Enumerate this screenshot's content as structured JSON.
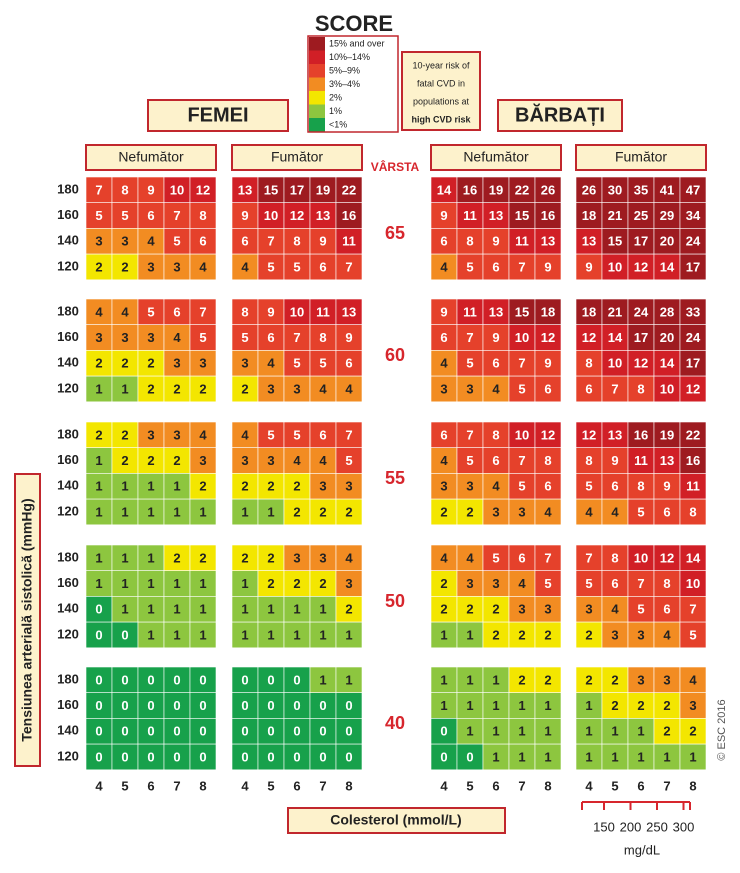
{
  "title": "SCORE",
  "legend": {
    "items": [
      {
        "label": "15% and over",
        "color": "#9e1b20"
      },
      {
        "label": "10%–14%",
        "color": "#d11f26"
      },
      {
        "label": "5%–9%",
        "color": "#e5412b"
      },
      {
        "label": "3%–4%",
        "color": "#f28c22"
      },
      {
        "label": "2%",
        "color": "#f3e600"
      },
      {
        "label": "1%",
        "color": "#8dc63f"
      },
      {
        "label": "<1%",
        "color": "#17a14b"
      }
    ]
  },
  "note": [
    "10-year risk of",
    "fatal CVD in",
    "populations at",
    "high CVD risk"
  ],
  "sexes": [
    "FEMEI",
    "BĂRBAȚI"
  ],
  "panels": [
    "Nefumător",
    "Fumător",
    "Nefumător",
    "Fumător"
  ],
  "age_label": "VÂRSTA",
  "ages": [
    65,
    60,
    55,
    50,
    40
  ],
  "bp": [
    180,
    160,
    140,
    120
  ],
  "cholesterol": [
    4,
    5,
    6,
    7,
    8
  ],
  "grids": [
    [
      [
        [
          7,
          8,
          9,
          10,
          12
        ],
        [
          5,
          5,
          6,
          7,
          8
        ],
        [
          3,
          3,
          4,
          5,
          6
        ],
        [
          2,
          2,
          3,
          3,
          4
        ]
      ],
      [
        [
          13,
          15,
          17,
          19,
          22
        ],
        [
          9,
          10,
          12,
          13,
          16
        ],
        [
          6,
          7,
          8,
          9,
          11
        ],
        [
          4,
          5,
          5,
          6,
          7
        ]
      ],
      [
        [
          14,
          16,
          19,
          22,
          26
        ],
        [
          9,
          11,
          13,
          15,
          16
        ],
        [
          6,
          8,
          9,
          11,
          13
        ],
        [
          4,
          5,
          6,
          7,
          9
        ]
      ],
      [
        [
          26,
          30,
          35,
          41,
          47
        ],
        [
          18,
          21,
          25,
          29,
          34
        ],
        [
          13,
          15,
          17,
          20,
          24
        ],
        [
          9,
          10,
          12,
          14,
          17
        ]
      ]
    ],
    [
      [
        [
          4,
          4,
          5,
          6,
          7
        ],
        [
          3,
          3,
          3,
          4,
          5
        ],
        [
          2,
          2,
          2,
          3,
          3
        ],
        [
          1,
          1,
          2,
          2,
          2
        ]
      ],
      [
        [
          8,
          9,
          10,
          11,
          13
        ],
        [
          5,
          6,
          7,
          8,
          9
        ],
        [
          3,
          4,
          5,
          5,
          6
        ],
        [
          2,
          3,
          3,
          4,
          4
        ]
      ],
      [
        [
          9,
          11,
          13,
          15,
          18
        ],
        [
          6,
          7,
          9,
          10,
          12
        ],
        [
          4,
          5,
          6,
          7,
          9
        ],
        [
          3,
          3,
          4,
          5,
          6
        ]
      ],
      [
        [
          18,
          21,
          24,
          28,
          33
        ],
        [
          12,
          14,
          17,
          20,
          24
        ],
        [
          8,
          10,
          12,
          14,
          17
        ],
        [
          6,
          7,
          8,
          10,
          12
        ]
      ]
    ],
    [
      [
        [
          2,
          2,
          3,
          3,
          4
        ],
        [
          1,
          2,
          2,
          2,
          3
        ],
        [
          1,
          1,
          1,
          1,
          2
        ],
        [
          1,
          1,
          1,
          1,
          1
        ]
      ],
      [
        [
          4,
          5,
          5,
          6,
          7
        ],
        [
          3,
          3,
          4,
          4,
          5
        ],
        [
          2,
          2,
          2,
          3,
          3
        ],
        [
          1,
          1,
          2,
          2,
          2
        ]
      ],
      [
        [
          6,
          7,
          8,
          10,
          12
        ],
        [
          4,
          5,
          6,
          7,
          8
        ],
        [
          3,
          3,
          4,
          5,
          6
        ],
        [
          2,
          2,
          3,
          3,
          4
        ]
      ],
      [
        [
          12,
          13,
          16,
          19,
          22
        ],
        [
          8,
          9,
          11,
          13,
          16
        ],
        [
          5,
          6,
          8,
          9,
          11
        ],
        [
          4,
          4,
          5,
          6,
          8
        ]
      ]
    ],
    [
      [
        [
          1,
          1,
          1,
          2,
          2
        ],
        [
          1,
          1,
          1,
          1,
          1
        ],
        [
          0,
          1,
          1,
          1,
          1
        ],
        [
          0,
          0,
          1,
          1,
          1
        ]
      ],
      [
        [
          2,
          2,
          3,
          3,
          4
        ],
        [
          1,
          2,
          2,
          2,
          3
        ],
        [
          1,
          1,
          1,
          1,
          2
        ],
        [
          1,
          1,
          1,
          1,
          1
        ]
      ],
      [
        [
          4,
          4,
          5,
          6,
          7
        ],
        [
          2,
          3,
          3,
          4,
          5
        ],
        [
          2,
          2,
          2,
          3,
          3
        ],
        [
          1,
          1,
          2,
          2,
          2
        ]
      ],
      [
        [
          7,
          8,
          10,
          12,
          14
        ],
        [
          5,
          6,
          7,
          8,
          10
        ],
        [
          3,
          4,
          5,
          6,
          7
        ],
        [
          2,
          3,
          3,
          4,
          5
        ]
      ]
    ],
    [
      [
        [
          0,
          0,
          0,
          0,
          0
        ],
        [
          0,
          0,
          0,
          0,
          0
        ],
        [
          0,
          0,
          0,
          0,
          0
        ],
        [
          0,
          0,
          0,
          0,
          0
        ]
      ],
      [
        [
          0,
          0,
          0,
          1,
          1
        ],
        [
          0,
          0,
          0,
          0,
          0
        ],
        [
          0,
          0,
          0,
          0,
          0
        ],
        [
          0,
          0,
          0,
          0,
          0
        ]
      ],
      [
        [
          1,
          1,
          1,
          2,
          2
        ],
        [
          1,
          1,
          1,
          1,
          1
        ],
        [
          0,
          1,
          1,
          1,
          1
        ],
        [
          0,
          0,
          1,
          1,
          1
        ]
      ],
      [
        [
          2,
          2,
          3,
          3,
          4
        ],
        [
          1,
          2,
          2,
          2,
          3
        ],
        [
          1,
          1,
          1,
          2,
          2
        ],
        [
          1,
          1,
          1,
          1,
          1
        ]
      ]
    ]
  ],
  "x_label": "Colesterol (mmol/L)",
  "y_label": "Tensiunea arterială sistolică (mmHg)",
  "mgdl_ticks": [
    150,
    200,
    250,
    300
  ],
  "mgdl_unit": "mg/dL",
  "copyright": "© ESC 2016"
}
